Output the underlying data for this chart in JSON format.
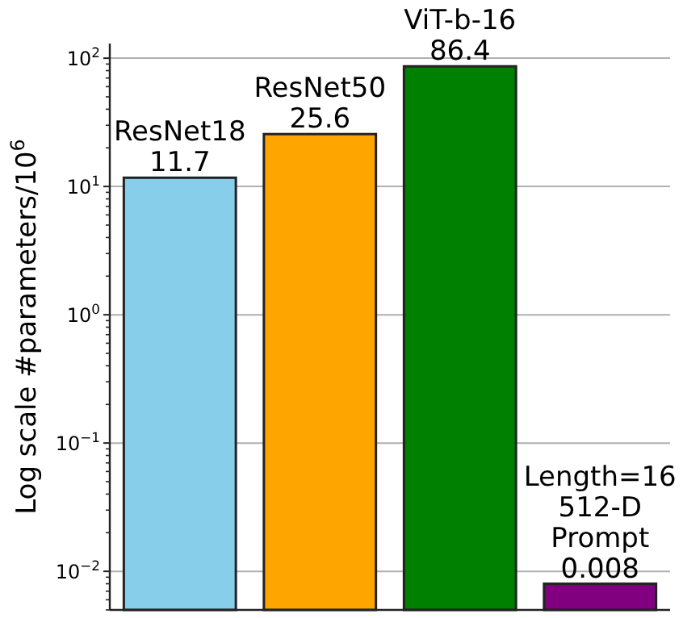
{
  "chart_data": {
    "type": "bar",
    "ylabel": "Log scale #parameters/10$^{6}$",
    "categories": [
      null,
      null,
      null,
      null
    ],
    "values": [
      11.7,
      25.6,
      86.4,
      0.008
    ],
    "colors": [
      "#87ceeb",
      "#ffa500",
      "#008000",
      "#800080"
    ],
    "value_labels": [
      "ResNet18\n11.7",
      "ResNet50\n25.6",
      "ViT-b-16\n86.4",
      "Length=16\n512-D\nPrompt\n0.008"
    ],
    "log": true,
    "ylim": [
      0.005,
      130
    ],
    "yticks": [
      {
        "value": 0.01,
        "label": "10$^{−2}$"
      },
      {
        "value": 0.1,
        "label": "10$^{−1}$"
      },
      {
        "value": 1,
        "label": "10$^{0}$"
      },
      {
        "value": 10,
        "label": "10$^{1}$"
      },
      {
        "value": 100,
        "label": "10$^{2}$"
      }
    ],
    "grid": "y"
  }
}
